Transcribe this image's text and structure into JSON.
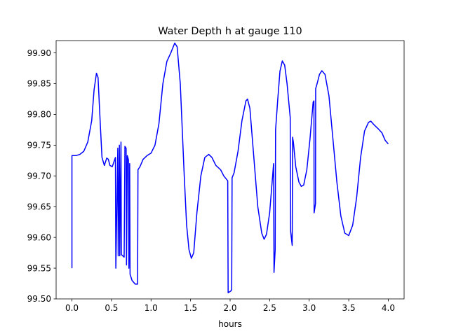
{
  "chart_data": {
    "type": "line",
    "title": "Water Depth h at gauge 110",
    "xlabel": "hours",
    "ylabel": "",
    "xlim": [
      -0.2,
      4.2
    ],
    "ylim": [
      99.5,
      99.92
    ],
    "x_ticks": [
      0.0,
      0.5,
      1.0,
      1.5,
      2.0,
      2.5,
      3.0,
      3.5,
      4.0
    ],
    "x_tick_labels": [
      "0.0",
      "0.5",
      "1.0",
      "1.5",
      "2.0",
      "2.5",
      "3.0",
      "3.5",
      "4.0"
    ],
    "y_ticks": [
      99.5,
      99.55,
      99.6,
      99.65,
      99.7,
      99.75,
      99.8,
      99.85,
      99.9
    ],
    "y_tick_labels": [
      "99.50",
      "99.55",
      "99.60",
      "99.65",
      "99.70",
      "99.75",
      "99.80",
      "99.85",
      "99.90"
    ],
    "grid": false,
    "legend": "none",
    "series": [
      {
        "color": "#0000ff",
        "points": [
          [
            0.0,
            99.55
          ],
          [
            0.0,
            99.733
          ],
          [
            0.05,
            99.733
          ],
          [
            0.1,
            99.735
          ],
          [
            0.15,
            99.74
          ],
          [
            0.2,
            99.755
          ],
          [
            0.25,
            99.79
          ],
          [
            0.28,
            99.84
          ],
          [
            0.31,
            99.867
          ],
          [
            0.33,
            99.86
          ],
          [
            0.36,
            99.78
          ],
          [
            0.38,
            99.73
          ],
          [
            0.41,
            99.717
          ],
          [
            0.44,
            99.729
          ],
          [
            0.46,
            99.727
          ],
          [
            0.48,
            99.717
          ],
          [
            0.51,
            99.715
          ],
          [
            0.55,
            99.73
          ],
          [
            0.555,
            99.55
          ],
          [
            0.58,
            99.745
          ],
          [
            0.585,
            99.57
          ],
          [
            0.6,
            99.75
          ],
          [
            0.605,
            99.57
          ],
          [
            0.62,
            99.755
          ],
          [
            0.625,
            99.572
          ],
          [
            0.66,
            99.568
          ],
          [
            0.67,
            99.748
          ],
          [
            0.685,
            99.745
          ],
          [
            0.69,
            99.555
          ],
          [
            0.7,
            99.733
          ],
          [
            0.715,
            99.726
          ],
          [
            0.72,
            99.55
          ],
          [
            0.73,
            99.72
          ],
          [
            0.735,
            99.54
          ],
          [
            0.76,
            99.53
          ],
          [
            0.8,
            99.524
          ],
          [
            0.83,
            99.524
          ],
          [
            0.835,
            99.71
          ],
          [
            0.86,
            99.715
          ],
          [
            0.9,
            99.727
          ],
          [
            0.95,
            99.733
          ],
          [
            1.0,
            99.737
          ],
          [
            1.05,
            99.75
          ],
          [
            1.1,
            99.785
          ],
          [
            1.15,
            99.85
          ],
          [
            1.2,
            99.886
          ],
          [
            1.25,
            99.9
          ],
          [
            1.3,
            99.916
          ],
          [
            1.33,
            99.91
          ],
          [
            1.37,
            99.85
          ],
          [
            1.42,
            99.7
          ],
          [
            1.45,
            99.62
          ],
          [
            1.48,
            99.58
          ],
          [
            1.51,
            99.566
          ],
          [
            1.54,
            99.575
          ],
          [
            1.58,
            99.64
          ],
          [
            1.63,
            99.7
          ],
          [
            1.68,
            99.73
          ],
          [
            1.73,
            99.735
          ],
          [
            1.77,
            99.73
          ],
          [
            1.82,
            99.717
          ],
          [
            1.88,
            99.71
          ],
          [
            1.92,
            99.7
          ],
          [
            1.97,
            99.692
          ],
          [
            1.975,
            99.51
          ],
          [
            2.01,
            99.513
          ],
          [
            2.02,
            99.515
          ],
          [
            2.025,
            99.697
          ],
          [
            2.05,
            99.705
          ],
          [
            2.1,
            99.74
          ],
          [
            2.15,
            99.79
          ],
          [
            2.2,
            99.822
          ],
          [
            2.22,
            99.825
          ],
          [
            2.25,
            99.81
          ],
          [
            2.3,
            99.73
          ],
          [
            2.35,
            99.65
          ],
          [
            2.4,
            99.607
          ],
          [
            2.43,
            99.597
          ],
          [
            2.46,
            99.605
          ],
          [
            2.5,
            99.64
          ],
          [
            2.55,
            99.72
          ],
          [
            2.555,
            99.543
          ],
          [
            2.57,
            99.58
          ],
          [
            2.575,
            99.775
          ],
          [
            2.6,
            99.82
          ],
          [
            2.63,
            99.87
          ],
          [
            2.66,
            99.887
          ],
          [
            2.69,
            99.88
          ],
          [
            2.72,
            99.85
          ],
          [
            2.76,
            99.795
          ],
          [
            2.765,
            99.61
          ],
          [
            2.785,
            99.587
          ],
          [
            2.79,
            99.763
          ],
          [
            2.8,
            99.755
          ],
          [
            2.83,
            99.715
          ],
          [
            2.87,
            99.69
          ],
          [
            2.9,
            99.683
          ],
          [
            2.93,
            99.685
          ],
          [
            2.97,
            99.71
          ],
          [
            3.01,
            99.76
          ],
          [
            3.05,
            99.82
          ],
          [
            3.06,
            99.822
          ],
          [
            3.062,
            99.64
          ],
          [
            3.08,
            99.655
          ],
          [
            3.082,
            99.842
          ],
          [
            3.1,
            99.85
          ],
          [
            3.13,
            99.865
          ],
          [
            3.16,
            99.871
          ],
          [
            3.2,
            99.865
          ],
          [
            3.25,
            99.83
          ],
          [
            3.3,
            99.76
          ],
          [
            3.35,
            99.69
          ],
          [
            3.4,
            99.635
          ],
          [
            3.45,
            99.607
          ],
          [
            3.5,
            99.603
          ],
          [
            3.55,
            99.62
          ],
          [
            3.6,
            99.665
          ],
          [
            3.65,
            99.73
          ],
          [
            3.7,
            99.773
          ],
          [
            3.75,
            99.787
          ],
          [
            3.78,
            99.789
          ],
          [
            3.82,
            99.783
          ],
          [
            3.87,
            99.777
          ],
          [
            3.92,
            99.77
          ],
          [
            3.96,
            99.758
          ],
          [
            4.0,
            99.752
          ]
        ]
      }
    ]
  }
}
